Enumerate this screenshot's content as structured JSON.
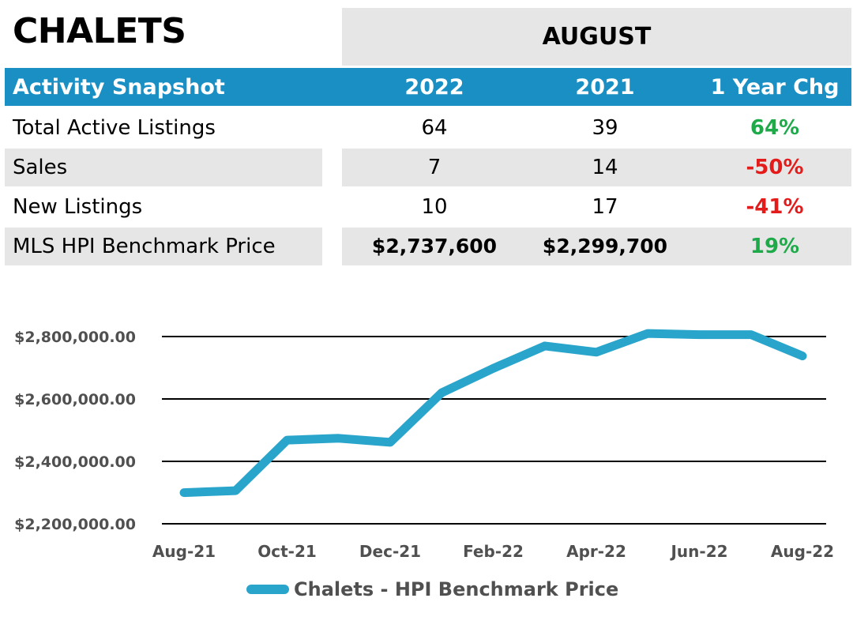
{
  "title": "CHALETS",
  "period": "AUGUST",
  "table": {
    "header": {
      "label": "Activity Snapshot",
      "col1": "2022",
      "col2": "2021",
      "col3": "1 Year Chg"
    },
    "rows": [
      {
        "label": "Total Active Listings",
        "v2022": "64",
        "v2021": "39",
        "chg": "64%",
        "chg_sign": "positive"
      },
      {
        "label": "Sales",
        "v2022": "7",
        "v2021": "14",
        "chg": "-50%",
        "chg_sign": "negative"
      },
      {
        "label": "New Listings",
        "v2022": "10",
        "v2021": "17",
        "chg": "-41%",
        "chg_sign": "negative"
      },
      {
        "label": "MLS HPI Benchmark Price",
        "v2022": "$2,737,600",
        "v2021": "$2,299,700",
        "chg": "19%",
        "chg_sign": "positive"
      }
    ]
  },
  "colors": {
    "header_blue": "#1a8fc4",
    "line_blue": "#29a5cc",
    "positive_green": "#1faa4a",
    "negative_red": "#e41b1b"
  },
  "chart_data": {
    "type": "line",
    "x": [
      "Aug-21",
      "Sep-21",
      "Oct-21",
      "Nov-21",
      "Dec-21",
      "Jan-22",
      "Feb-22",
      "Mar-22",
      "Apr-22",
      "May-22",
      "Jun-22",
      "Jul-22",
      "Aug-22"
    ],
    "x_tick_labels": [
      "Aug-21",
      "Oct-21",
      "Dec-21",
      "Feb-22",
      "Apr-22",
      "Jun-22",
      "Aug-22"
    ],
    "series": [
      {
        "name": "Chalets - HPI Benchmark Price",
        "values": [
          2299700,
          2306000,
          2468000,
          2474000,
          2461000,
          2620000,
          2698000,
          2770000,
          2750000,
          2810000,
          2806000,
          2806000,
          2737600
        ]
      }
    ],
    "y_tick_labels": [
      "$2,200,000.00",
      "$2,400,000.00",
      "$2,600,000.00",
      "$2,800,000.00"
    ],
    "y_ticks": [
      2200000,
      2400000,
      2600000,
      2800000
    ],
    "ylim": [
      2200000,
      2800000
    ],
    "grid": true,
    "legend": "bottom"
  }
}
